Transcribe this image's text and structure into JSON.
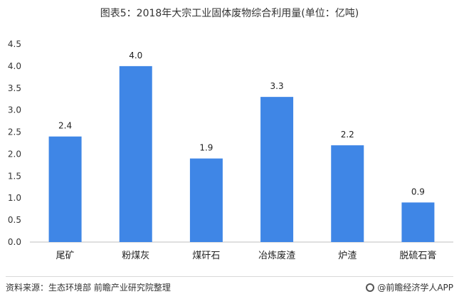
{
  "title": "图表5：2018年大宗工业固体废物综合利用量(单位：亿吨)",
  "footer": {
    "source": "资料来源：生态环境部 前瞻产业研究院整理",
    "brand": "@前瞻经济学人APP",
    "brand_icon": "qianzhan-logo-icon"
  },
  "chart_data": {
    "type": "bar",
    "title": "图表5：2018年大宗工业固体废物综合利用量(单位：亿吨)",
    "categories": [
      "尾矿",
      "粉煤灰",
      "煤矸石",
      "冶炼废渣",
      "炉渣",
      "脱硫石膏"
    ],
    "values": [
      2.4,
      4.0,
      1.9,
      3.3,
      2.2,
      0.9
    ],
    "value_labels": [
      "2.4",
      "4.0",
      "1.9",
      "3.3",
      "2.2",
      "0.9"
    ],
    "yticks": [
      "0.0",
      "0.5",
      "1.0",
      "1.5",
      "2.0",
      "2.5",
      "3.0",
      "3.5",
      "4.0",
      "4.5"
    ],
    "ylim": [
      0,
      4.5
    ],
    "bar_color": "#3f86e6",
    "grid": false,
    "legend": "none"
  }
}
